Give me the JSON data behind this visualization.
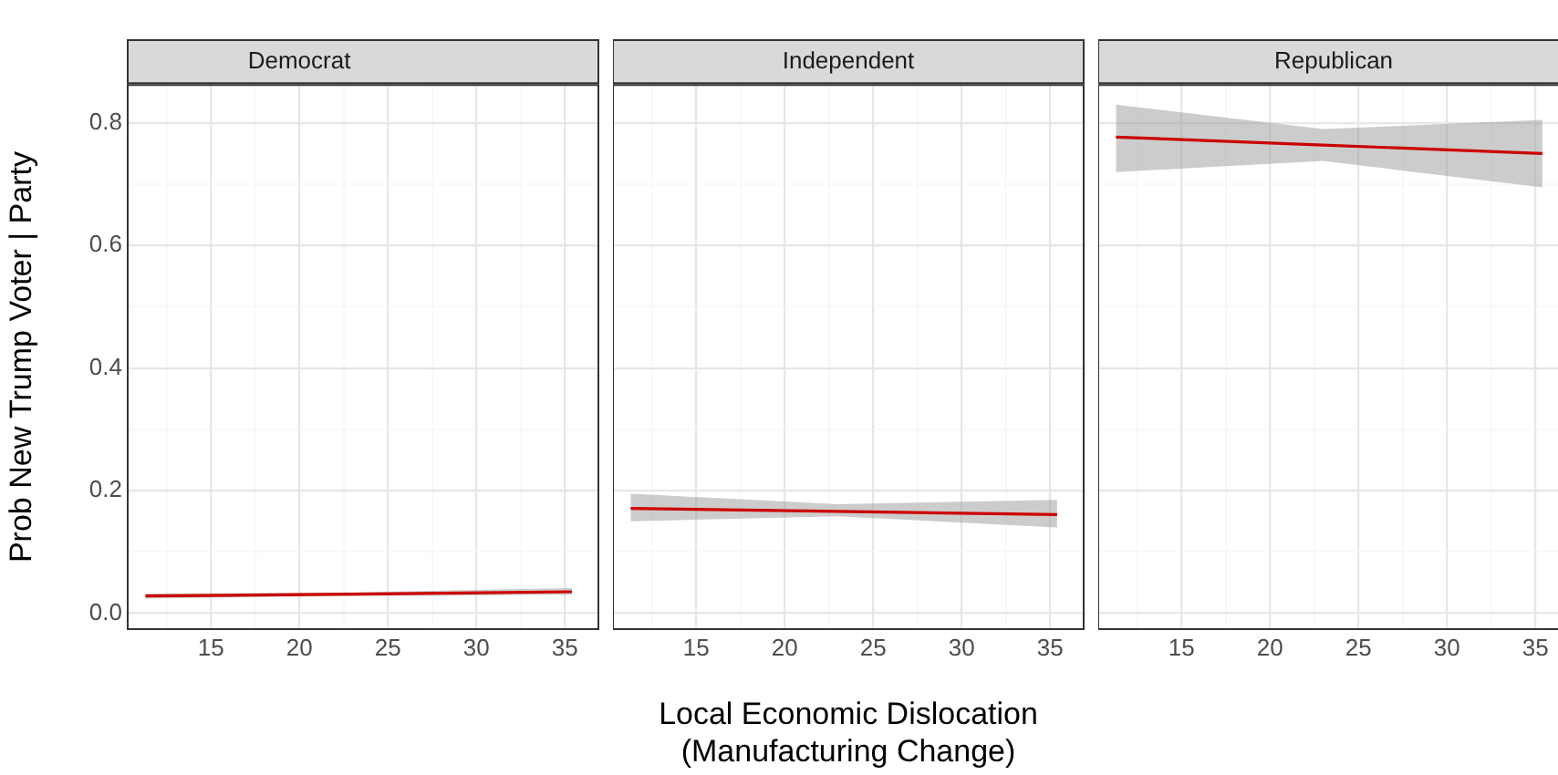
{
  "chart_data": [
    {
      "type": "line",
      "title": "Democrat",
      "ylabel": "Prob New Trump Voter | Party",
      "xlim": [
        10.3,
        36.9
      ],
      "ylim": [
        -0.026,
        0.862
      ],
      "xticks": [
        {
          "value": 12.5,
          "label": null
        },
        15,
        {
          "value": 17.5,
          "label": null
        },
        20,
        {
          "value": 22.5,
          "label": null
        },
        25,
        {
          "value": 27.5,
          "label": null
        },
        30,
        {
          "value": 32.5,
          "label": null
        },
        35
      ],
      "yticks": [
        {
          "value": 0,
          "label": "0.0"
        },
        {
          "value": 0.1,
          "label": null
        },
        0.2,
        {
          "value": 0.3,
          "label": null
        },
        0.4,
        {
          "value": 0.5,
          "label": null
        },
        0.6,
        {
          "value": 0.7,
          "label": null
        },
        0.8
      ],
      "grid": true,
      "series": [
        {
          "color": "#cc0000",
          "x": [
            11.3,
            23,
            35.4
          ],
          "values": [
            0.028,
            0.031,
            0.035
          ],
          "lower": [
            0.024,
            0.028,
            0.03
          ],
          "upper": [
            0.032,
            0.034,
            0.041
          ]
        }
      ]
    },
    {
      "type": "line",
      "title": "Independent",
      "xlabel": "Local Economic Dislocation\n(Manufacturing Change)",
      "tick_labels": "x",
      "xlim": [
        10.3,
        36.9
      ],
      "ylim": [
        -0.026,
        0.862
      ],
      "xticks": [
        {
          "value": 12.5,
          "label": null
        },
        15,
        {
          "value": 17.5,
          "label": null
        },
        20,
        {
          "value": 22.5,
          "label": null
        },
        25,
        {
          "value": 27.5,
          "label": null
        },
        30,
        {
          "value": 32.5,
          "label": null
        },
        35
      ],
      "yticks": [
        0,
        {
          "value": 0.1,
          "label": null
        },
        0.2,
        {
          "value": 0.3,
          "label": null
        },
        0.4,
        {
          "value": 0.5,
          "label": null
        },
        0.6,
        {
          "value": 0.7,
          "label": null
        },
        0.8
      ],
      "grid": true,
      "series": [
        {
          "color": "#cc0000",
          "x": [
            11.3,
            23,
            35.4
          ],
          "values": [
            0.171,
            0.166,
            0.161
          ],
          "lower": [
            0.15,
            0.158,
            0.14
          ],
          "upper": [
            0.195,
            0.178,
            0.185
          ]
        }
      ]
    },
    {
      "type": "line",
      "title": "Republican",
      "tick_labels": "x",
      "xlim": [
        10.3,
        36.9
      ],
      "ylim": [
        -0.026,
        0.862
      ],
      "xticks": [
        {
          "value": 12.5,
          "label": null
        },
        15,
        {
          "value": 17.5,
          "label": null
        },
        20,
        {
          "value": 22.5,
          "label": null
        },
        25,
        {
          "value": 27.5,
          "label": null
        },
        30,
        {
          "value": 32.5,
          "label": null
        },
        35
      ],
      "yticks": [
        0,
        {
          "value": 0.1,
          "label": null
        },
        0.2,
        {
          "value": 0.3,
          "label": null
        },
        0.4,
        {
          "value": 0.5,
          "label": null
        },
        0.6,
        {
          "value": 0.7,
          "label": null
        },
        0.8
      ],
      "grid": true,
      "series": [
        {
          "color": "#cc0000",
          "x": [
            11.3,
            23,
            35.4
          ],
          "values": [
            0.777,
            0.764,
            0.75
          ],
          "lower": [
            0.72,
            0.738,
            0.695
          ],
          "upper": [
            0.83,
            0.79,
            0.805
          ]
        }
      ]
    }
  ]
}
